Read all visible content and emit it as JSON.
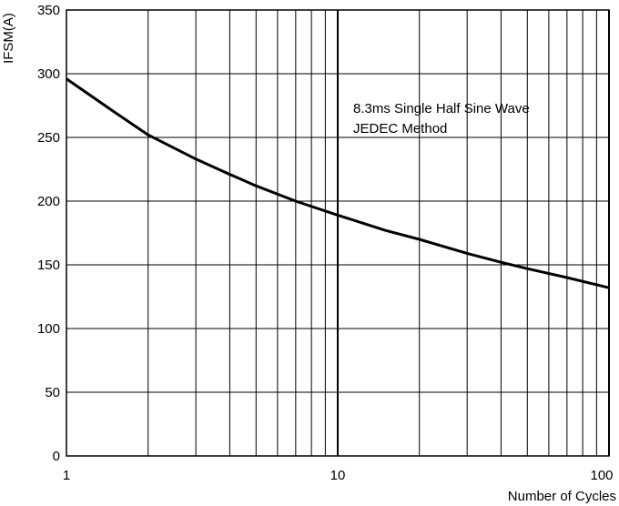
{
  "chart_data": {
    "type": "line",
    "title": "",
    "xlabel": "Number of Cycles",
    "ylabel": "IFSM(A)",
    "x_scale": "log",
    "xlim": [
      1,
      100
    ],
    "ylim": [
      0,
      350
    ],
    "x_ticks": [
      "1",
      "10",
      "100"
    ],
    "y_ticks": [
      "0",
      "50",
      "100",
      "150",
      "200",
      "250",
      "300",
      "350"
    ],
    "grid": true,
    "annotations": [
      "8.3ms Single Half Sine Wave",
      "JEDEC Method"
    ],
    "series": [
      {
        "x": [
          1,
          1.5,
          2,
          3,
          4,
          5,
          7,
          10,
          15,
          20,
          30,
          40,
          50,
          70,
          100
        ],
        "y": [
          296,
          270,
          252,
          233,
          221,
          212,
          200,
          189,
          177,
          170,
          159,
          152,
          147,
          140,
          132
        ]
      }
    ],
    "line_color": "#000000"
  }
}
